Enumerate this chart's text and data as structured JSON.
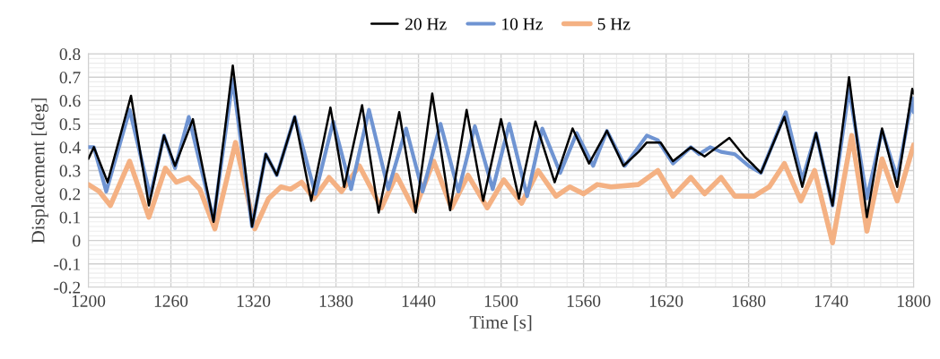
{
  "chart_data": {
    "type": "line",
    "xlabel": "Time [s]",
    "ylabel": "Displacement [deg]",
    "xlim": [
      1200,
      1800
    ],
    "xticks": [
      1200,
      1260,
      1320,
      1380,
      1440,
      1500,
      1560,
      1620,
      1680,
      1740,
      1800
    ],
    "ylim": [
      -0.2,
      0.8
    ],
    "yticks": [
      -0.2,
      -0.1,
      0,
      0.1,
      0.2,
      0.3,
      0.4,
      0.5,
      0.6,
      0.7,
      0.8
    ],
    "grid": true,
    "legend": "top",
    "marker": "none",
    "line_style": "solid",
    "series": [
      {
        "name": "20 Hz",
        "color": "#000000",
        "x": [
          1200,
          1204,
          1214,
          1231,
          1244,
          1255,
          1263,
          1276,
          1291,
          1305,
          1319,
          1329,
          1337,
          1350,
          1362,
          1376,
          1386,
          1399,
          1411,
          1426,
          1438,
          1450,
          1463,
          1475,
          1487,
          1500,
          1513,
          1525,
          1539,
          1552,
          1564,
          1577,
          1589,
          1600,
          1606,
          1616,
          1625,
          1638,
          1648,
          1666,
          1677,
          1684,
          1689,
          1706,
          1719,
          1729,
          1741,
          1753,
          1766,
          1777,
          1788,
          1799,
          1800
        ],
        "values": [
          0.35,
          0.4,
          0.25,
          0.62,
          0.15,
          0.45,
          0.32,
          0.52,
          0.08,
          0.75,
          0.06,
          0.37,
          0.28,
          0.53,
          0.17,
          0.57,
          0.23,
          0.58,
          0.12,
          0.55,
          0.12,
          0.63,
          0.13,
          0.56,
          0.17,
          0.52,
          0.18,
          0.51,
          0.25,
          0.48,
          0.33,
          0.47,
          0.32,
          0.38,
          0.42,
          0.42,
          0.34,
          0.4,
          0.36,
          0.44,
          0.36,
          0.32,
          0.29,
          0.53,
          0.23,
          0.46,
          0.15,
          0.7,
          0.1,
          0.48,
          0.23,
          0.65,
          0.63
        ]
      },
      {
        "name": "10 Hz",
        "color": "#6f94d2",
        "x": [
          1200,
          1204,
          1213,
          1230,
          1245,
          1255,
          1263,
          1273,
          1291,
          1305,
          1319,
          1329,
          1337,
          1350,
          1365,
          1378,
          1391,
          1404,
          1418,
          1431,
          1443,
          1456,
          1469,
          1481,
          1494,
          1506,
          1519,
          1530,
          1543,
          1555,
          1567,
          1577,
          1590,
          1606,
          1614,
          1625,
          1638,
          1644,
          1652,
          1660,
          1670,
          1680,
          1689,
          1707,
          1719,
          1729,
          1741,
          1753,
          1766,
          1777,
          1788,
          1799,
          1800
        ],
        "values": [
          0.4,
          0.4,
          0.21,
          0.56,
          0.19,
          0.45,
          0.31,
          0.53,
          0.09,
          0.69,
          0.06,
          0.37,
          0.28,
          0.53,
          0.2,
          0.51,
          0.22,
          0.56,
          0.22,
          0.48,
          0.21,
          0.5,
          0.21,
          0.49,
          0.22,
          0.5,
          0.19,
          0.48,
          0.29,
          0.46,
          0.32,
          0.47,
          0.32,
          0.45,
          0.43,
          0.33,
          0.4,
          0.37,
          0.4,
          0.38,
          0.37,
          0.32,
          0.29,
          0.55,
          0.26,
          0.46,
          0.15,
          0.65,
          0.18,
          0.47,
          0.27,
          0.61,
          0.55
        ]
      },
      {
        "name": "5 Hz",
        "color": "#f4b183",
        "x": [
          1200,
          1208,
          1216,
          1230,
          1244,
          1256,
          1264,
          1273,
          1281,
          1292,
          1307,
          1321,
          1331,
          1340,
          1347,
          1355,
          1364,
          1375,
          1384,
          1397,
          1413,
          1424,
          1437,
          1451,
          1464,
          1476,
          1490,
          1502,
          1515,
          1527,
          1540,
          1550,
          1560,
          1570,
          1580,
          1600,
          1614,
          1625,
          1638,
          1648,
          1660,
          1670,
          1684,
          1695,
          1706,
          1718,
          1728,
          1741,
          1755,
          1766,
          1777,
          1788,
          1800
        ],
        "values": [
          0.24,
          0.21,
          0.15,
          0.34,
          0.1,
          0.31,
          0.25,
          0.27,
          0.22,
          0.05,
          0.42,
          0.05,
          0.18,
          0.23,
          0.22,
          0.25,
          0.18,
          0.27,
          0.21,
          0.32,
          0.14,
          0.28,
          0.13,
          0.34,
          0.14,
          0.28,
          0.14,
          0.26,
          0.16,
          0.3,
          0.19,
          0.23,
          0.2,
          0.24,
          0.23,
          0.24,
          0.3,
          0.19,
          0.27,
          0.2,
          0.27,
          0.19,
          0.19,
          0.23,
          0.33,
          0.17,
          0.3,
          -0.01,
          0.45,
          0.04,
          0.35,
          0.17,
          0.41
        ]
      }
    ]
  }
}
